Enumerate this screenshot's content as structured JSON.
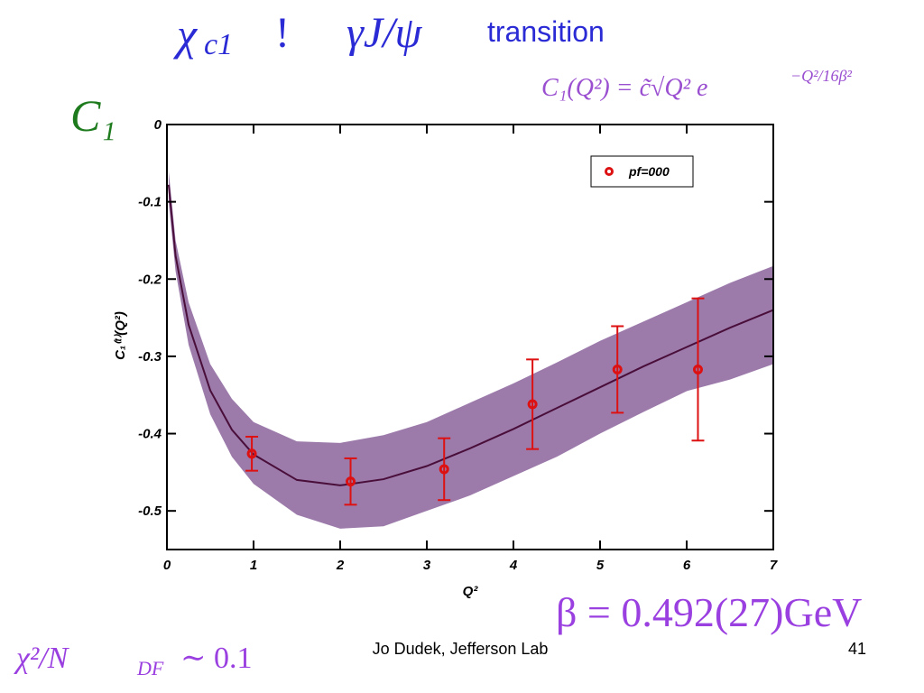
{
  "slide": {
    "title_symbol": "χ",
    "title_subscript": "c1",
    "title_arrow": "!",
    "title_product": "γJ/ψ",
    "title_word": "transition",
    "formula": "C₁(Q²) = c̃√Q² e",
    "formula_exponent": "−Q²/16β²",
    "panel_label": "C₁",
    "beta": "β = 0.492(27)GeV",
    "chi_main": "χ²/N",
    "chi_sub": "DF",
    "chi_tail": "∼ 0.1",
    "footer": "Jo Dudek, Jefferson Lab",
    "page": "41"
  },
  "chart_data": {
    "type": "scatter",
    "x_label": "Q²",
    "y_label": "C₁⁽ᵗ⁾(Q²)",
    "xlim": [
      0,
      7
    ],
    "xticks": [
      0,
      1,
      2,
      3,
      4,
      5,
      6,
      7
    ],
    "ylim": [
      -0.55,
      0
    ],
    "yticks": [
      0,
      -0.1,
      -0.2,
      -0.3,
      -0.4,
      -0.5
    ],
    "legend": "upper right",
    "series": [
      {
        "name": "pf=000",
        "color": "#dd1111",
        "x": [
          0.98,
          2.12,
          3.2,
          4.22,
          5.2,
          6.13
        ],
        "values": [
          -0.426,
          -0.462,
          -0.446,
          -0.362,
          -0.317,
          -0.317
        ],
        "errors": [
          0.022,
          0.03,
          0.04,
          0.058,
          0.056,
          0.092
        ]
      }
    ],
    "fit": {
      "color": "#4a0e3a",
      "band_color": "#9c7bab",
      "x": [
        0.02,
        0.1,
        0.25,
        0.5,
        0.75,
        1,
        1.5,
        2,
        2.5,
        3,
        3.5,
        4,
        4.5,
        5,
        5.5,
        6,
        6.5,
        7
      ],
      "values": [
        -0.078,
        -0.17,
        -0.259,
        -0.344,
        -0.395,
        -0.427,
        -0.46,
        -0.467,
        -0.459,
        -0.442,
        -0.419,
        -0.394,
        -0.367,
        -0.34,
        -0.313,
        -0.288,
        -0.263,
        -0.24
      ],
      "upper": [
        -0.06,
        -0.15,
        -0.23,
        -0.31,
        -0.355,
        -0.385,
        -0.41,
        -0.412,
        -0.402,
        -0.385,
        -0.36,
        -0.335,
        -0.308,
        -0.28,
        -0.255,
        -0.23,
        -0.205,
        -0.183
      ],
      "lower": [
        -0.1,
        -0.19,
        -0.285,
        -0.375,
        -0.43,
        -0.465,
        -0.505,
        -0.523,
        -0.52,
        -0.5,
        -0.48,
        -0.455,
        -0.43,
        -0.4,
        -0.372,
        -0.345,
        -0.33,
        -0.31
      ]
    }
  }
}
